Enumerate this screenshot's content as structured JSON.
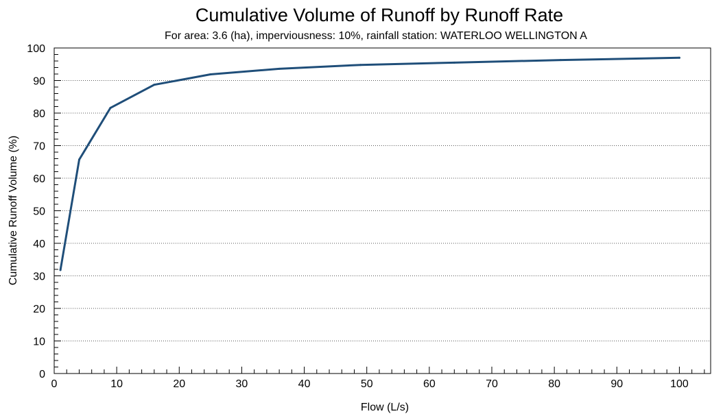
{
  "chart_data": {
    "type": "line",
    "title": "Cumulative Volume of Runoff by Runoff Rate",
    "subtitle": "For area: 3.6 (ha), imperviousness: 10%, rainfall station: WATERLOO WELLINGTON A",
    "xlabel": "Flow (L/s)",
    "ylabel": "Cumulative Runoff Volume (%)",
    "xlim": [
      0,
      105
    ],
    "ylim": [
      0,
      100
    ],
    "x_ticks": [
      0,
      10,
      20,
      30,
      40,
      50,
      60,
      70,
      80,
      90,
      100
    ],
    "y_ticks": [
      0,
      10,
      20,
      30,
      40,
      50,
      60,
      70,
      80,
      90,
      100
    ],
    "grid": "horizontal-dotted",
    "line_color": "#1f4e79",
    "series": [
      {
        "x": [
          1,
          4,
          9,
          16,
          25,
          36,
          49,
          64,
          81,
          100
        ],
        "values": [
          31.8,
          65.7,
          81.6,
          88.7,
          91.9,
          93.6,
          94.8,
          95.5,
          96.3,
          97.0
        ]
      }
    ]
  }
}
